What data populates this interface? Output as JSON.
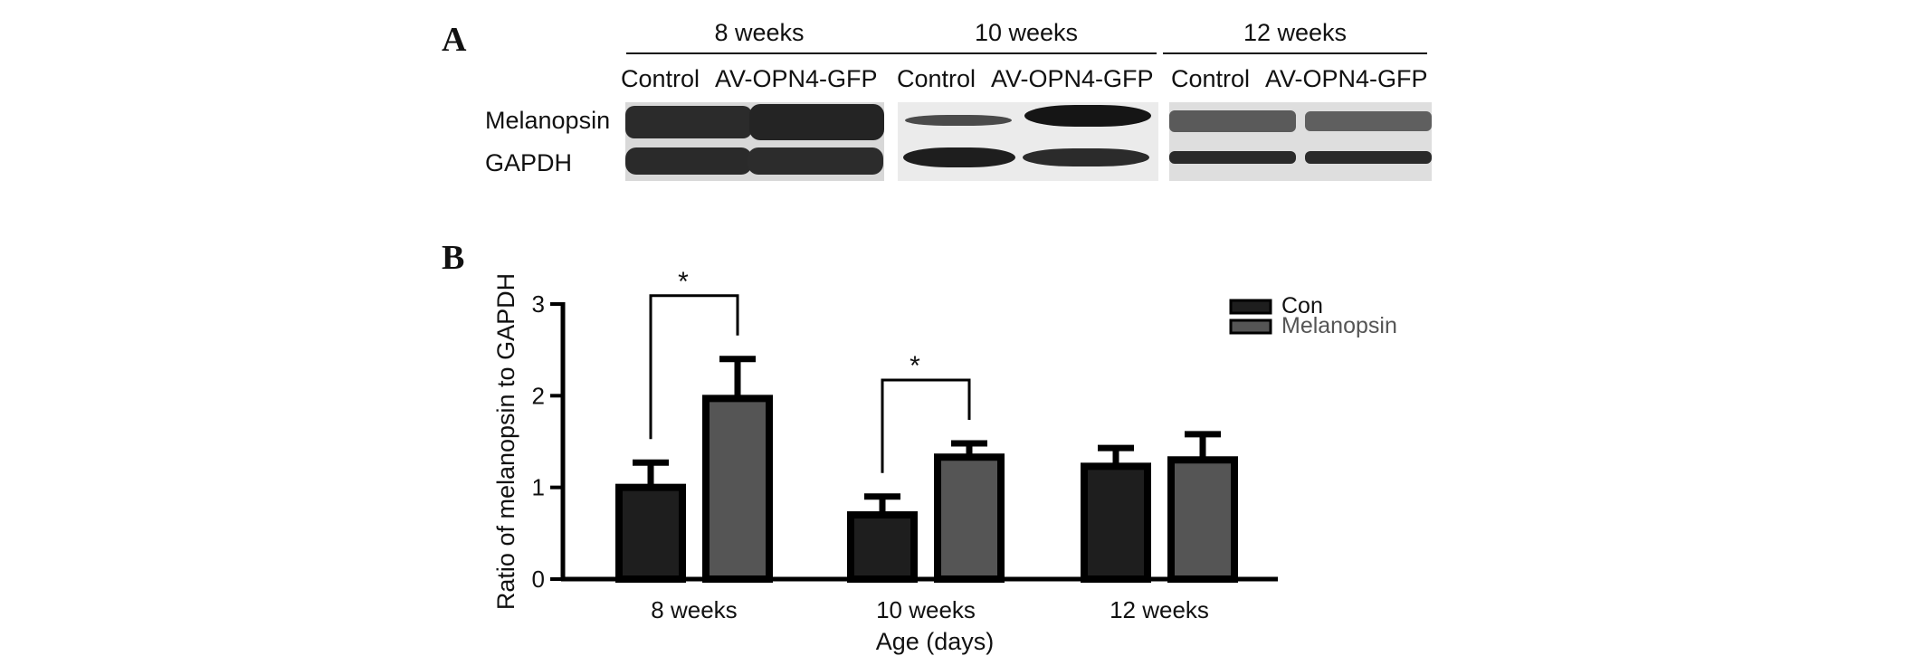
{
  "panel_a": {
    "letter": "A",
    "groups": [
      "8 weeks",
      "10 weeks",
      "12 weeks"
    ],
    "lanes": [
      "Control",
      "AV-OPN4-GFP",
      "Control",
      "AV-OPN4-GFP",
      "Control",
      "AV-OPN4-GFP"
    ],
    "rows": [
      "Melanopsin",
      "GAPDH"
    ]
  },
  "panel_b": {
    "letter": "B"
  },
  "colors": {
    "con": "#1e1e1e",
    "melanopsin": "#555555",
    "axis": "#000000"
  },
  "chart_data": {
    "type": "bar",
    "categories": [
      "8 weeks",
      "10 weeks",
      "12 weeks"
    ],
    "series": [
      {
        "name": "Con",
        "values": [
          1.0,
          0.7,
          1.23
        ],
        "errors": [
          0.27,
          0.2,
          0.2
        ]
      },
      {
        "name": "Melanopsin",
        "values": [
          1.97,
          1.33,
          1.3
        ],
        "errors": [
          0.43,
          0.15,
          0.28
        ]
      }
    ],
    "xlabel": "Age (days)",
    "ylabel": "Ratio of melanopsin to GAPDH",
    "ylim": [
      0,
      3
    ],
    "yticks": [
      "0",
      "1",
      "2",
      "3"
    ],
    "grid": false,
    "legend_position": "top-right",
    "significance": [
      {
        "category": "8 weeks",
        "label": "*"
      },
      {
        "category": "10 weeks",
        "label": "*"
      }
    ]
  }
}
